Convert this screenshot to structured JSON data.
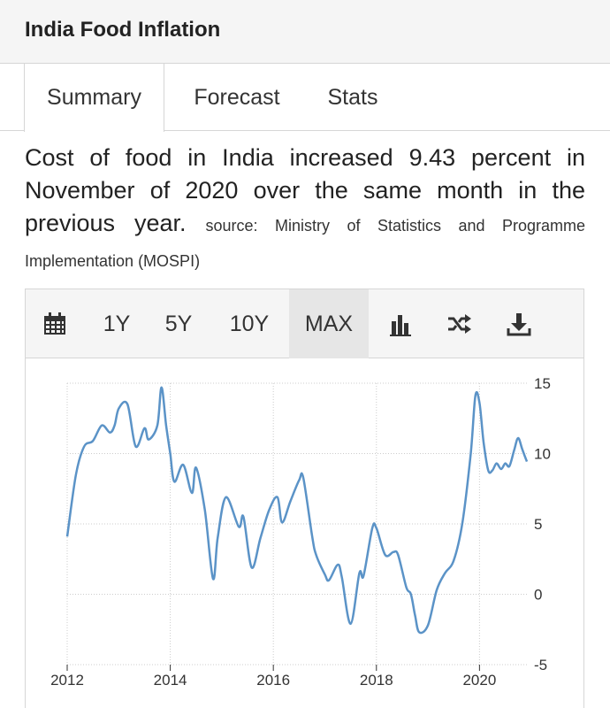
{
  "page": {
    "title": "India Food Inflation"
  },
  "tabs": [
    {
      "label": "Summary",
      "active": true
    },
    {
      "label": "Forecast",
      "active": false
    },
    {
      "label": "Stats",
      "active": false
    }
  ],
  "summary": {
    "text": "Cost of food in India increased 9.43 percent in November of 2020 over the same month in the previous year.",
    "source": "source: Ministry of Statistics and Programme Implementation (MOSPI)"
  },
  "toolbar": {
    "calendar_icon": "calendar-icon",
    "ranges": [
      "1Y",
      "5Y",
      "10Y",
      "MAX"
    ],
    "active_range": "MAX",
    "chart_type_icon": "bar-chart-icon",
    "compare_icon": "shuffle-icon",
    "download_icon": "download-icon"
  },
  "colors": {
    "line": "#5b93c7",
    "grid": "#cccccc",
    "axis": "#333333",
    "active_bg": "#e6e6e6"
  },
  "chart_data": {
    "type": "line",
    "title": "",
    "xlabel": "",
    "ylabel": "",
    "xlim": [
      2012.0,
      2020.92
    ],
    "ylim": [
      -5,
      15
    ],
    "x_ticks": [
      "2012",
      "2014",
      "2016",
      "2018",
      "2020"
    ],
    "y_ticks": [
      "15",
      "10",
      "5",
      "0",
      "-5"
    ],
    "y_axis_position": "right",
    "grid": true,
    "series": [
      {
        "points": [
          [
            2012.0,
            4.1
          ],
          [
            2012.17,
            8.5
          ],
          [
            2012.33,
            10.5
          ],
          [
            2012.5,
            10.9
          ],
          [
            2012.67,
            12.0
          ],
          [
            2012.83,
            11.5
          ],
          [
            2012.92,
            12.0
          ],
          [
            2013.0,
            13.2
          ],
          [
            2013.17,
            13.5
          ],
          [
            2013.33,
            10.5
          ],
          [
            2013.5,
            11.8
          ],
          [
            2013.58,
            11.0
          ],
          [
            2013.75,
            12.0
          ],
          [
            2013.83,
            14.7
          ],
          [
            2013.92,
            12.0
          ],
          [
            2014.0,
            10.0
          ],
          [
            2014.08,
            8.0
          ],
          [
            2014.25,
            9.2
          ],
          [
            2014.42,
            7.2
          ],
          [
            2014.5,
            9.0
          ],
          [
            2014.67,
            6.0
          ],
          [
            2014.83,
            1.1
          ],
          [
            2014.92,
            4.0
          ],
          [
            2015.08,
            6.9
          ],
          [
            2015.33,
            4.8
          ],
          [
            2015.42,
            5.5
          ],
          [
            2015.58,
            1.9
          ],
          [
            2015.75,
            4.0
          ],
          [
            2015.92,
            6.0
          ],
          [
            2016.08,
            6.9
          ],
          [
            2016.17,
            5.1
          ],
          [
            2016.33,
            6.6
          ],
          [
            2016.5,
            8.1
          ],
          [
            2016.58,
            8.3
          ],
          [
            2016.75,
            4.2
          ],
          [
            2016.83,
            2.8
          ],
          [
            2017.0,
            1.4
          ],
          [
            2017.08,
            1.0
          ],
          [
            2017.25,
            2.1
          ],
          [
            2017.33,
            1.2
          ],
          [
            2017.5,
            -2.1
          ],
          [
            2017.67,
            1.5
          ],
          [
            2017.75,
            1.3
          ],
          [
            2017.92,
            4.7
          ],
          [
            2018.0,
            4.7
          ],
          [
            2018.17,
            2.8
          ],
          [
            2018.33,
            3.0
          ],
          [
            2018.42,
            2.8
          ],
          [
            2018.58,
            0.5
          ],
          [
            2018.67,
            0.0
          ],
          [
            2018.75,
            -1.5
          ],
          [
            2018.83,
            -2.7
          ],
          [
            2019.0,
            -2.2
          ],
          [
            2019.17,
            0.3
          ],
          [
            2019.33,
            1.5
          ],
          [
            2019.5,
            2.4
          ],
          [
            2019.67,
            5.1
          ],
          [
            2019.83,
            10.0
          ],
          [
            2019.92,
            14.1
          ],
          [
            2020.0,
            13.6
          ],
          [
            2020.08,
            10.8
          ],
          [
            2020.17,
            8.8
          ],
          [
            2020.25,
            8.8
          ],
          [
            2020.33,
            9.3
          ],
          [
            2020.42,
            8.9
          ],
          [
            2020.5,
            9.3
          ],
          [
            2020.58,
            9.1
          ],
          [
            2020.67,
            10.2
          ],
          [
            2020.75,
            11.1
          ],
          [
            2020.83,
            10.3
          ],
          [
            2020.92,
            9.43
          ]
        ]
      }
    ]
  }
}
